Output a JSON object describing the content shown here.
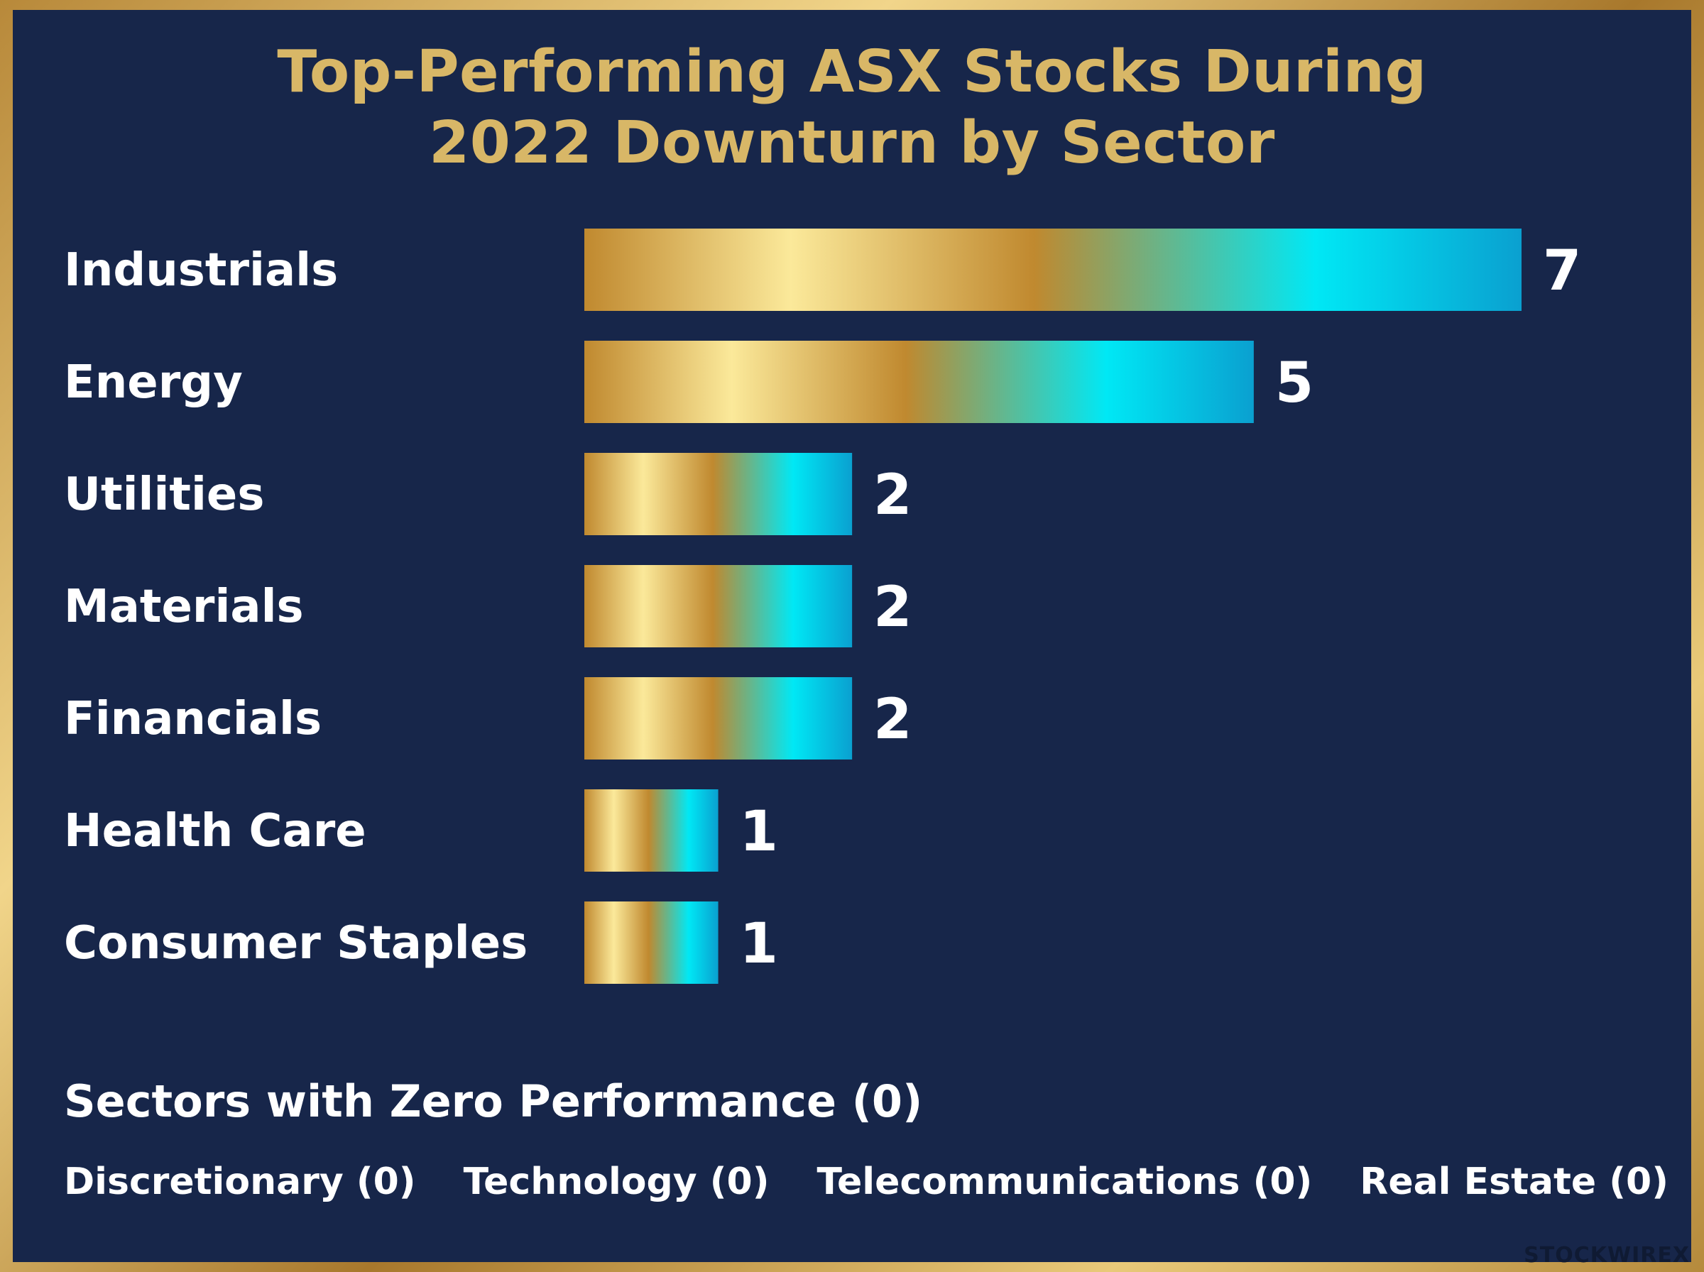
{
  "title_line1": "Top-Performing ASX Stocks During",
  "title_line2": "2022 Downturn by Sector",
  "chart_data": {
    "type": "bar",
    "orientation": "horizontal",
    "title": "Top-Performing ASX Stocks During 2022 Downturn by Sector",
    "categories": [
      "Industrials",
      "Energy",
      "Utilities",
      "Materials",
      "Financials",
      "Health Care",
      "Consumer Staples"
    ],
    "values": [
      7,
      5,
      2,
      2,
      2,
      1,
      1
    ],
    "xlabel": "",
    "ylabel": "",
    "xlim": [
      0,
      7
    ],
    "grid": false,
    "data_labels": true
  },
  "zero_section": {
    "heading": "Sectors with Zero Performance (0)",
    "items": [
      "Discretionary (0)",
      "Technology (0)",
      "Telecommunications (0)",
      "Real Estate (0)"
    ]
  },
  "watermark": "STOCKWIREX",
  "colors": {
    "background": "#17264a",
    "frame_gold": "#c9a24e",
    "title_gold": "#d8b767",
    "bar_gold_light": "#fbe99a",
    "bar_gold_dark": "#c0892f",
    "bar_cyan": "#00e8f5",
    "bar_blue": "#0aa0d0",
    "text": "#ffffff"
  }
}
